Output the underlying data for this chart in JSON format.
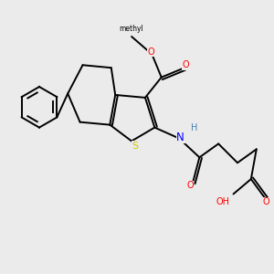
{
  "background_color": "#ebebeb",
  "bond_color": "#000000",
  "atom_colors": {
    "O": "#ff0000",
    "N": "#0000ff",
    "S": "#cccc00",
    "H": "#4682b4",
    "C": "#000000"
  },
  "figsize": [
    3.0,
    3.0
  ],
  "dpi": 100
}
